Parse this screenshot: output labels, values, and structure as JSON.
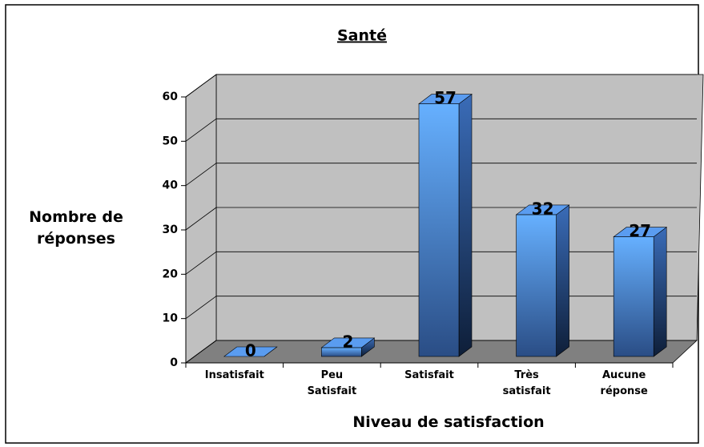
{
  "chart_data": {
    "type": "bar3d",
    "title": "Santé",
    "x_label": "Niveau de satisfaction",
    "y_label": "Nombre de réponses",
    "categories": [
      "Insatisfait",
      "Peu Satisfait",
      "Satisfait",
      "Très satisfait",
      "Aucune réponse"
    ],
    "values": [
      0,
      2,
      57,
      32,
      27
    ],
    "color": "#5a9cf0",
    "ylim": [
      0,
      60
    ],
    "yticks": [
      0,
      10,
      20,
      30,
      40,
      50,
      60
    ],
    "grid": true
  }
}
